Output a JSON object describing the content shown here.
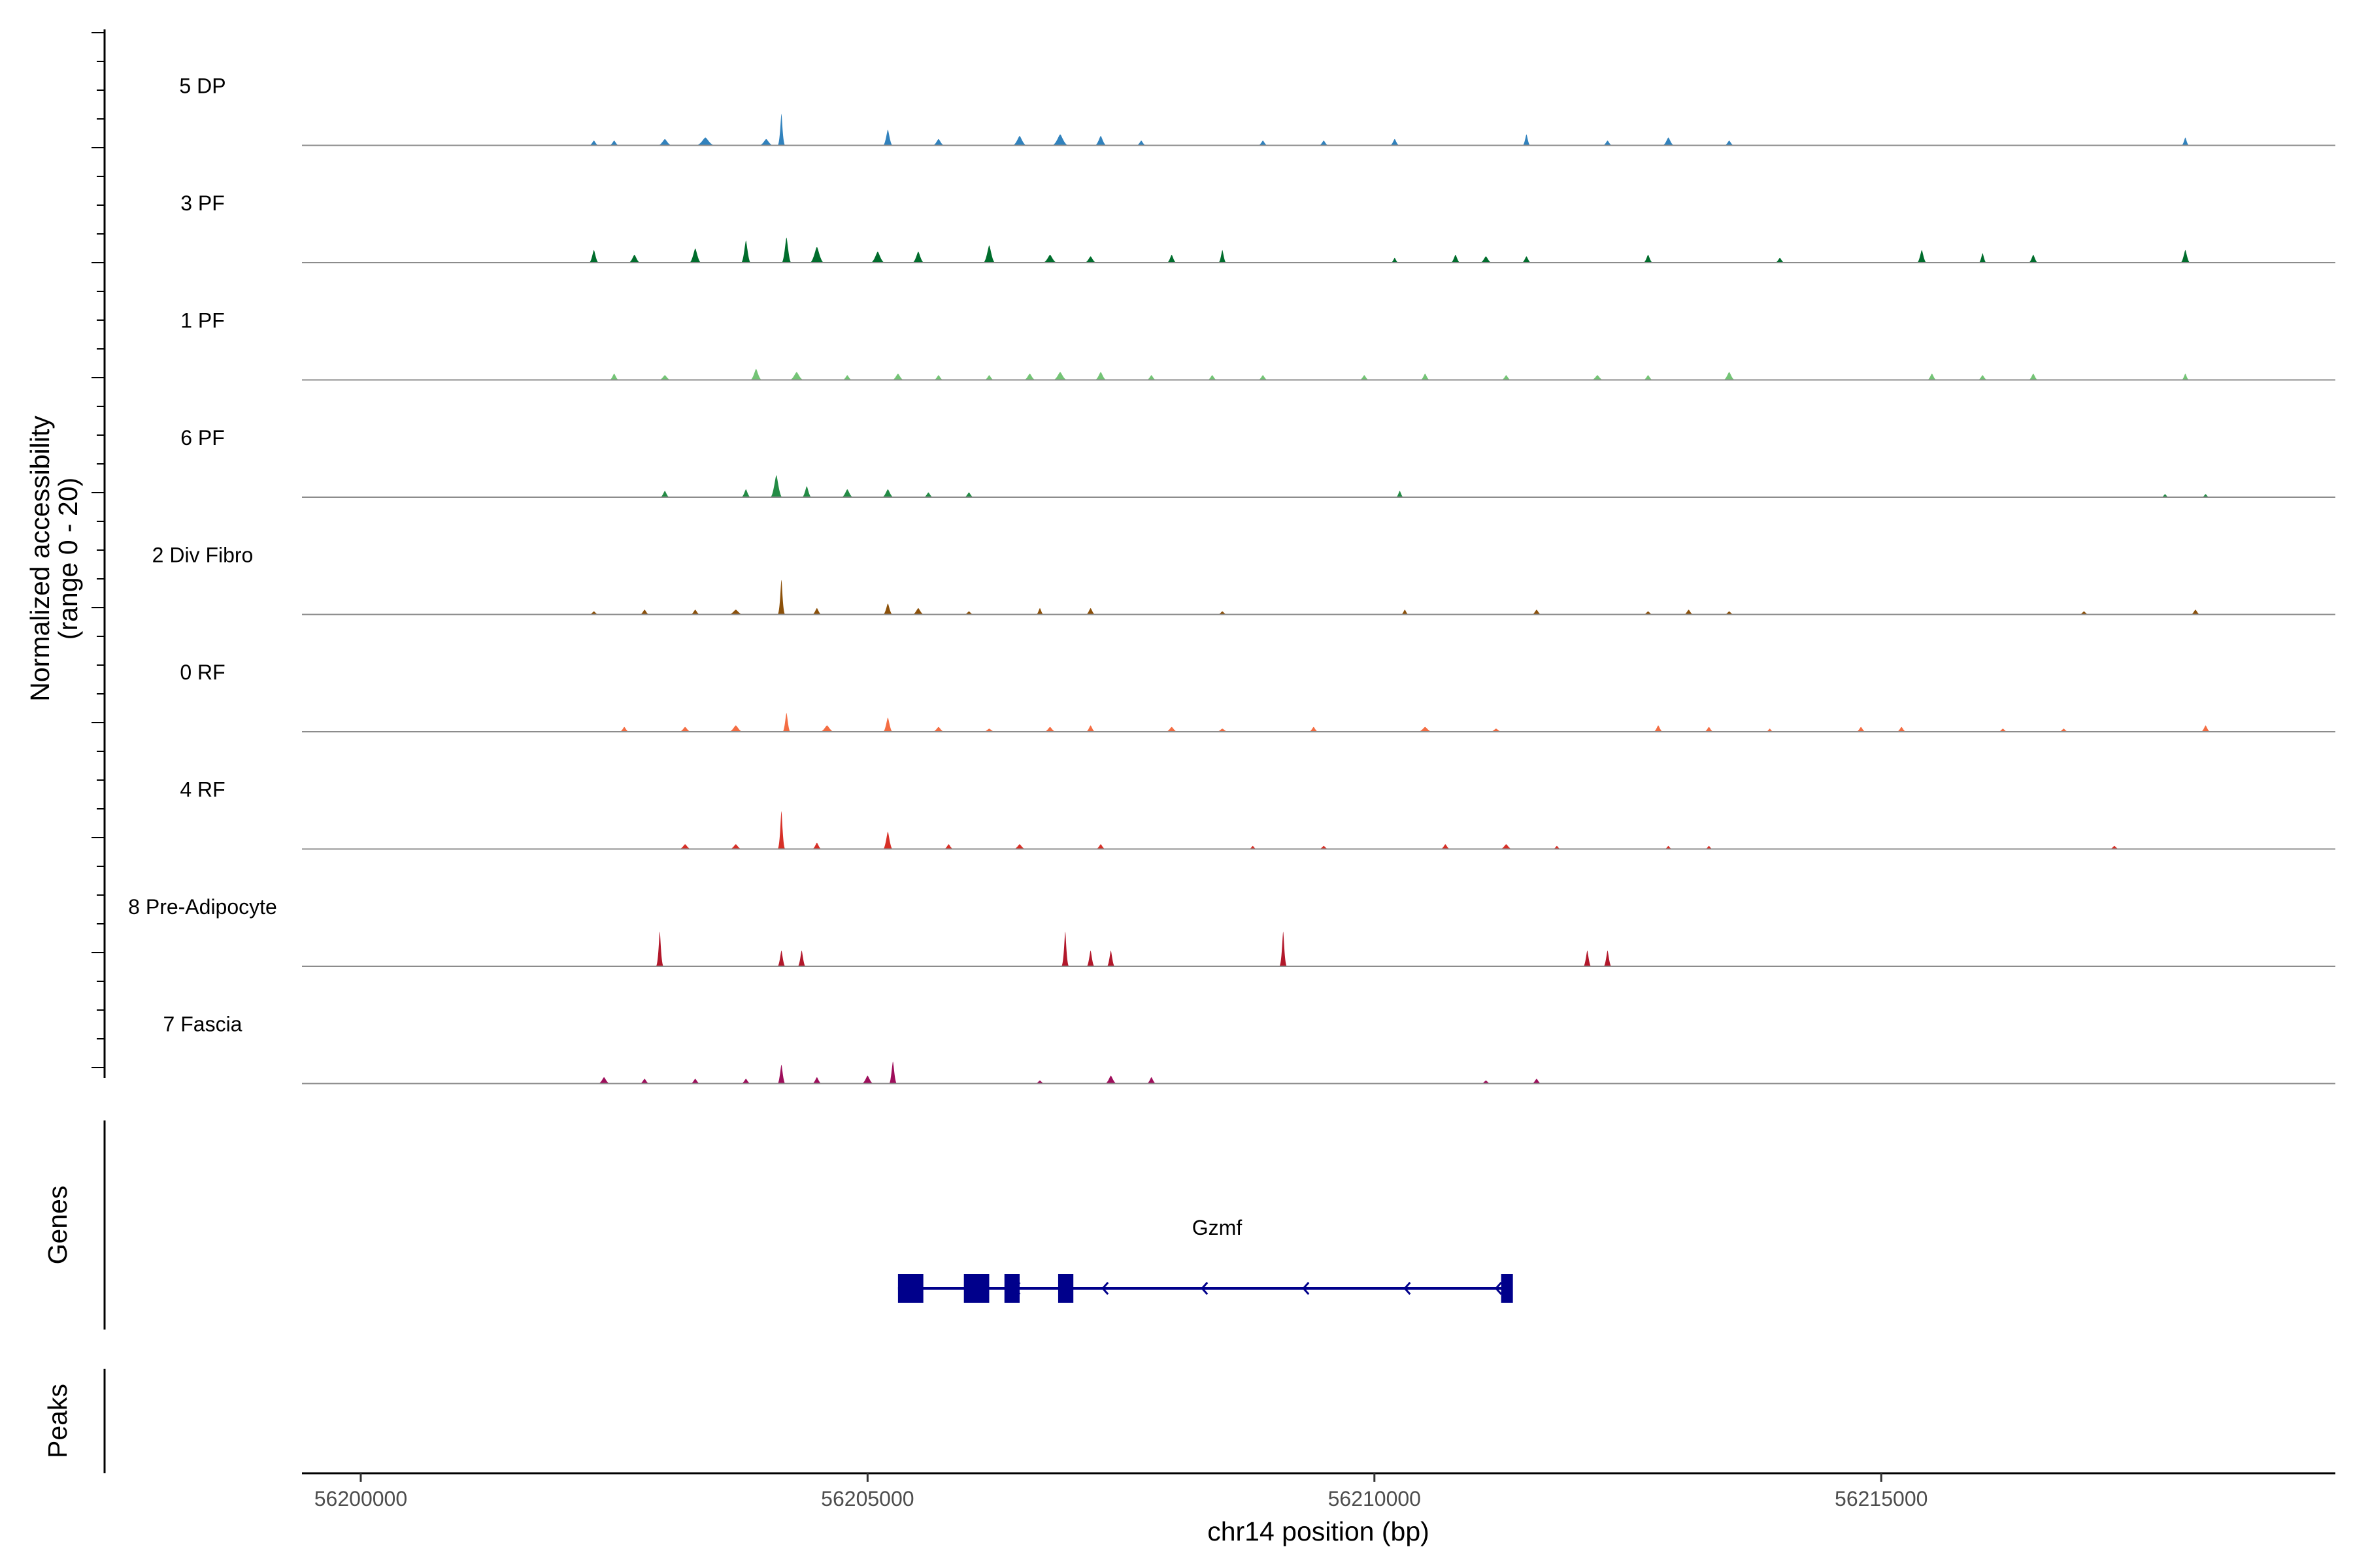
{
  "chart_data": {
    "type": "area",
    "title": "",
    "ylabel_line1": "Normalized accessibility",
    "ylabel_line2": "(range 0 - 20)",
    "xlabel": "chr14 position (bp)",
    "xlim": [
      56199420,
      56219480
    ],
    "xticks": [
      56200000,
      56205000,
      56210000,
      56215000
    ],
    "xtick_labels": [
      "56200000",
      "56205000",
      "56210000",
      "56215000"
    ],
    "ylim": [
      0,
      20
    ],
    "tracks": [
      {
        "name": "5 DP",
        "color": "#3182bd",
        "peaks": [
          [
            56202300,
            0.3,
            40
          ],
          [
            56202500,
            0.3,
            40
          ],
          [
            56203000,
            0.4,
            60
          ],
          [
            56203400,
            0.5,
            80
          ],
          [
            56204150,
            2.0,
            25
          ],
          [
            56204000,
            0.4,
            60
          ],
          [
            56205200,
            1.0,
            40
          ],
          [
            56205700,
            0.4,
            50
          ],
          [
            56206500,
            0.6,
            60
          ],
          [
            56206900,
            0.7,
            70
          ],
          [
            56207300,
            0.6,
            50
          ],
          [
            56207700,
            0.3,
            40
          ],
          [
            56208900,
            0.3,
            40
          ],
          [
            56209500,
            0.3,
            40
          ],
          [
            56210200,
            0.4,
            40
          ],
          [
            56211500,
            0.7,
            30
          ],
          [
            56212300,
            0.3,
            40
          ],
          [
            56212900,
            0.5,
            50
          ],
          [
            56213500,
            0.3,
            40
          ],
          [
            56218000,
            0.5,
            30
          ]
        ]
      },
      {
        "name": "3 PF",
        "color": "#006d2c",
        "peaks": [
          [
            56202300,
            0.8,
            40
          ],
          [
            56202700,
            0.5,
            50
          ],
          [
            56203300,
            0.9,
            50
          ],
          [
            56203800,
            1.4,
            40
          ],
          [
            56204200,
            1.6,
            40
          ],
          [
            56204500,
            1.0,
            60
          ],
          [
            56205100,
            0.7,
            60
          ],
          [
            56205500,
            0.7,
            50
          ],
          [
            56206200,
            1.1,
            50
          ],
          [
            56206800,
            0.5,
            60
          ],
          [
            56207200,
            0.4,
            50
          ],
          [
            56208000,
            0.5,
            40
          ],
          [
            56208500,
            0.8,
            30
          ],
          [
            56210200,
            0.3,
            30
          ],
          [
            56210800,
            0.5,
            40
          ],
          [
            56211100,
            0.4,
            50
          ],
          [
            56211500,
            0.4,
            40
          ],
          [
            56212700,
            0.5,
            40
          ],
          [
            56214000,
            0.3,
            40
          ],
          [
            56215400,
            0.8,
            40
          ],
          [
            56216000,
            0.6,
            30
          ],
          [
            56216500,
            0.5,
            40
          ],
          [
            56218000,
            0.8,
            40
          ]
        ]
      },
      {
        "name": "1 PF",
        "color": "#74c476",
        "peaks": [
          [
            56202500,
            0.4,
            40
          ],
          [
            56203000,
            0.3,
            50
          ],
          [
            56203900,
            0.7,
            50
          ],
          [
            56204300,
            0.5,
            60
          ],
          [
            56204800,
            0.3,
            40
          ],
          [
            56205300,
            0.4,
            50
          ],
          [
            56205700,
            0.3,
            40
          ],
          [
            56206200,
            0.3,
            40
          ],
          [
            56206600,
            0.4,
            50
          ],
          [
            56206900,
            0.5,
            60
          ],
          [
            56207300,
            0.5,
            50
          ],
          [
            56207800,
            0.3,
            40
          ],
          [
            56208400,
            0.3,
            40
          ],
          [
            56208900,
            0.3,
            40
          ],
          [
            56209900,
            0.3,
            40
          ],
          [
            56210500,
            0.4,
            40
          ],
          [
            56211300,
            0.3,
            40
          ],
          [
            56212200,
            0.3,
            50
          ],
          [
            56212700,
            0.3,
            40
          ],
          [
            56213500,
            0.5,
            50
          ],
          [
            56215500,
            0.4,
            40
          ],
          [
            56216000,
            0.3,
            40
          ],
          [
            56216500,
            0.4,
            40
          ],
          [
            56218000,
            0.4,
            30
          ]
        ]
      },
      {
        "name": "6 PF",
        "color": "#238b45",
        "peaks": [
          [
            56203000,
            0.4,
            40
          ],
          [
            56203800,
            0.5,
            40
          ],
          [
            56204100,
            1.4,
            50
          ],
          [
            56204400,
            0.7,
            40
          ],
          [
            56204800,
            0.5,
            50
          ],
          [
            56205200,
            0.5,
            50
          ],
          [
            56205600,
            0.3,
            40
          ],
          [
            56206000,
            0.3,
            40
          ],
          [
            56210250,
            0.4,
            30
          ],
          [
            56217800,
            0.2,
            30
          ],
          [
            56218200,
            0.2,
            30
          ]
        ]
      },
      {
        "name": "2 Div Fibro",
        "color": "#8c510a",
        "peaks": [
          [
            56202300,
            0.2,
            40
          ],
          [
            56202800,
            0.3,
            40
          ],
          [
            56203300,
            0.3,
            40
          ],
          [
            56203700,
            0.3,
            60
          ],
          [
            56204150,
            2.2,
            25
          ],
          [
            56204500,
            0.4,
            40
          ],
          [
            56205200,
            0.7,
            40
          ],
          [
            56205500,
            0.4,
            50
          ],
          [
            56206000,
            0.2,
            40
          ],
          [
            56206700,
            0.4,
            30
          ],
          [
            56207200,
            0.4,
            40
          ],
          [
            56208500,
            0.2,
            40
          ],
          [
            56210300,
            0.3,
            30
          ],
          [
            56211600,
            0.3,
            40
          ],
          [
            56212700,
            0.2,
            40
          ],
          [
            56213100,
            0.3,
            40
          ],
          [
            56213500,
            0.2,
            40
          ],
          [
            56217000,
            0.2,
            40
          ],
          [
            56218100,
            0.3,
            40
          ]
        ]
      },
      {
        "name": "0 RF",
        "color": "#f46d43",
        "peaks": [
          [
            56202600,
            0.3,
            40
          ],
          [
            56203200,
            0.3,
            50
          ],
          [
            56203700,
            0.4,
            60
          ],
          [
            56204200,
            1.2,
            30
          ],
          [
            56204600,
            0.4,
            60
          ],
          [
            56205200,
            0.9,
            40
          ],
          [
            56205700,
            0.3,
            50
          ],
          [
            56206200,
            0.2,
            50
          ],
          [
            56206800,
            0.3,
            50
          ],
          [
            56207200,
            0.4,
            40
          ],
          [
            56208000,
            0.3,
            50
          ],
          [
            56208500,
            0.2,
            50
          ],
          [
            56209400,
            0.3,
            40
          ],
          [
            56210500,
            0.3,
            60
          ],
          [
            56211200,
            0.2,
            50
          ],
          [
            56212800,
            0.4,
            40
          ],
          [
            56213300,
            0.3,
            40
          ],
          [
            56213900,
            0.2,
            30
          ],
          [
            56214800,
            0.3,
            40
          ],
          [
            56215200,
            0.3,
            40
          ],
          [
            56216200,
            0.2,
            40
          ],
          [
            56216800,
            0.2,
            40
          ],
          [
            56218200,
            0.4,
            40
          ]
        ]
      },
      {
        "name": "4 RF",
        "color": "#d73027",
        "peaks": [
          [
            56203200,
            0.3,
            50
          ],
          [
            56203700,
            0.3,
            50
          ],
          [
            56204150,
            2.4,
            25
          ],
          [
            56204500,
            0.4,
            40
          ],
          [
            56205200,
            1.1,
            40
          ],
          [
            56205800,
            0.3,
            40
          ],
          [
            56206500,
            0.3,
            50
          ],
          [
            56207300,
            0.3,
            40
          ],
          [
            56208800,
            0.2,
            30
          ],
          [
            56209500,
            0.2,
            40
          ],
          [
            56210700,
            0.3,
            40
          ],
          [
            56211300,
            0.3,
            50
          ],
          [
            56211800,
            0.2,
            30
          ],
          [
            56212900,
            0.2,
            30
          ],
          [
            56213300,
            0.2,
            30
          ],
          [
            56217300,
            0.2,
            40
          ]
        ]
      },
      {
        "name": "8 Pre-Adipocyte",
        "color": "#b2182b",
        "peaks": [
          [
            56202950,
            2.2,
            15
          ],
          [
            56204150,
            1.0,
            15
          ],
          [
            56204350,
            1.0,
            15
          ],
          [
            56206950,
            2.2,
            15
          ],
          [
            56207200,
            1.0,
            15
          ],
          [
            56207400,
            1.0,
            15
          ],
          [
            56209100,
            2.2,
            15
          ],
          [
            56212100,
            1.0,
            15
          ],
          [
            56212300,
            1.0,
            15
          ]
        ]
      },
      {
        "name": "7 Fascia",
        "color": "#9e0e5b",
        "peaks": [
          [
            56202400,
            0.4,
            50
          ],
          [
            56202800,
            0.3,
            40
          ],
          [
            56203300,
            0.3,
            40
          ],
          [
            56203800,
            0.3,
            40
          ],
          [
            56204150,
            1.2,
            30
          ],
          [
            56204500,
            0.4,
            40
          ],
          [
            56205000,
            0.5,
            50
          ],
          [
            56205250,
            1.4,
            25
          ],
          [
            56206700,
            0.2,
            40
          ],
          [
            56207400,
            0.5,
            50
          ],
          [
            56207800,
            0.4,
            40
          ],
          [
            56211100,
            0.2,
            40
          ],
          [
            56211600,
            0.3,
            40
          ]
        ]
      }
    ],
    "gene": {
      "name": "Gzmf",
      "color": "#00008b",
      "start": 56205300,
      "end": 56211300,
      "strand": "-",
      "exons": [
        [
          56205300,
          56205550
        ],
        [
          56205950,
          56206200
        ],
        [
          56206350,
          56206500
        ],
        [
          56206880,
          56207030
        ],
        [
          56211250,
          56211340
        ]
      ]
    },
    "gene_track_label": "Genes",
    "peaks_track_label": "Peaks"
  }
}
